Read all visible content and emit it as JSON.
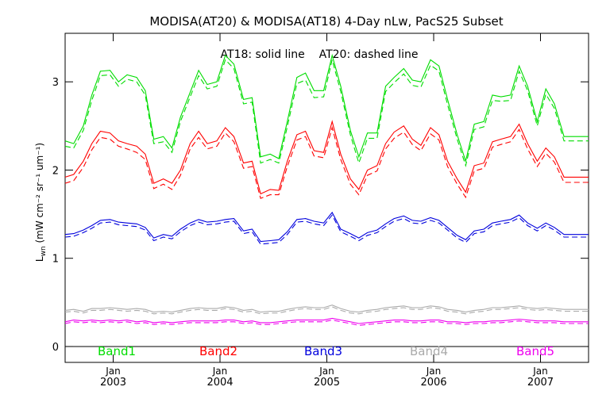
{
  "chart_data": {
    "type": "line",
    "title": "MODISA(AT20) & MODISA(AT18) 4-Day nLw, PacS25 Subset",
    "annotation": "AT18: solid line    AT20: dashed line",
    "ylabel_main": "L",
    "ylabel_sub": "wn",
    "ylabel_units": " (mW cm⁻² sr⁻¹ um⁻¹)",
    "xlabel": "",
    "ylim": [
      -0.18,
      3.55
    ],
    "xlim": [
      2002.55,
      2007.45
    ],
    "yticks": [
      0,
      1,
      2,
      3
    ],
    "ytick_labels": [
      "0",
      "1",
      "2",
      "3"
    ],
    "xticks": [
      2003,
      2004,
      2005,
      2006,
      2007
    ],
    "xtick_month_labels": [
      "Jan",
      "Jan",
      "Jan",
      "Jan",
      "Jan"
    ],
    "xtick_year_labels": [
      "2003",
      "2004",
      "2005",
      "2006",
      "2007"
    ],
    "grid": false,
    "x": [
      2002.55,
      2002.63,
      2002.72,
      2002.8,
      2002.88,
      2002.97,
      2003.05,
      2003.13,
      2003.22,
      2003.3,
      2003.38,
      2003.47,
      2003.55,
      2003.63,
      2003.72,
      2003.8,
      2003.88,
      2003.97,
      2004.05,
      2004.13,
      2004.22,
      2004.3,
      2004.38,
      2004.47,
      2004.55,
      2004.63,
      2004.72,
      2004.8,
      2004.88,
      2004.97,
      2005.05,
      2005.13,
      2005.22,
      2005.3,
      2005.38,
      2005.47,
      2005.55,
      2005.63,
      2005.72,
      2005.8,
      2005.88,
      2005.97,
      2006.05,
      2006.13,
      2006.22,
      2006.3,
      2006.38,
      2006.47,
      2006.55,
      2006.63,
      2006.72,
      2006.8,
      2006.88,
      2006.97,
      2007.05,
      2007.13,
      2007.22,
      2007.3,
      2007.38,
      2007.45
    ],
    "series": [
      {
        "name": "Band1",
        "color": "#00dd00",
        "style": "solid",
        "values": [
          2.33,
          2.3,
          2.5,
          2.85,
          3.12,
          3.13,
          3.0,
          3.08,
          3.05,
          2.9,
          2.35,
          2.38,
          2.25,
          2.6,
          2.88,
          3.13,
          2.97,
          3.0,
          3.3,
          3.2,
          2.8,
          2.82,
          2.15,
          2.18,
          2.13,
          2.55,
          3.05,
          3.1,
          2.9,
          2.9,
          3.3,
          2.95,
          2.45,
          2.15,
          2.42,
          2.42,
          2.95,
          3.05,
          3.15,
          3.02,
          3.0,
          3.25,
          3.18,
          2.8,
          2.4,
          2.1,
          2.52,
          2.55,
          2.85,
          2.83,
          2.85,
          3.18,
          2.95,
          2.55,
          2.92,
          2.75,
          2.38,
          2.38,
          2.38,
          2.38
        ]
      },
      {
        "name": "Band1",
        "color": "#00dd00",
        "style": "dashed",
        "values": [
          2.27,
          2.25,
          2.45,
          2.79,
          3.07,
          3.08,
          2.95,
          3.03,
          3.0,
          2.85,
          2.3,
          2.32,
          2.2,
          2.55,
          2.83,
          3.07,
          2.92,
          2.95,
          3.25,
          3.15,
          2.75,
          2.77,
          2.08,
          2.12,
          2.08,
          2.49,
          2.98,
          3.02,
          2.82,
          2.83,
          3.25,
          2.89,
          2.4,
          2.08,
          2.36,
          2.36,
          2.89,
          2.99,
          3.09,
          2.96,
          2.94,
          3.19,
          3.12,
          2.74,
          2.35,
          2.05,
          2.46,
          2.49,
          2.79,
          2.78,
          2.79,
          3.12,
          2.9,
          2.5,
          2.86,
          2.7,
          2.33,
          2.33,
          2.33,
          2.33
        ]
      },
      {
        "name": "Band2",
        "color": "#ff0000",
        "style": "solid",
        "values": [
          1.92,
          1.95,
          2.1,
          2.3,
          2.44,
          2.42,
          2.33,
          2.3,
          2.27,
          2.18,
          1.85,
          1.9,
          1.85,
          2.0,
          2.3,
          2.44,
          2.3,
          2.33,
          2.48,
          2.38,
          2.08,
          2.1,
          1.73,
          1.78,
          1.77,
          2.1,
          2.4,
          2.44,
          2.22,
          2.2,
          2.55,
          2.18,
          1.9,
          1.78,
          2.0,
          2.05,
          2.3,
          2.43,
          2.5,
          2.35,
          2.28,
          2.48,
          2.4,
          2.1,
          1.9,
          1.75,
          2.05,
          2.08,
          2.32,
          2.35,
          2.38,
          2.52,
          2.3,
          2.1,
          2.25,
          2.15,
          1.92,
          1.92,
          1.92,
          1.92
        ]
      },
      {
        "name": "Band2",
        "color": "#ff0000",
        "style": "dashed",
        "values": [
          1.85,
          1.88,
          2.03,
          2.23,
          2.37,
          2.35,
          2.27,
          2.24,
          2.2,
          2.12,
          1.79,
          1.84,
          1.78,
          1.94,
          2.24,
          2.37,
          2.24,
          2.27,
          2.42,
          2.32,
          2.02,
          2.04,
          1.68,
          1.72,
          1.72,
          2.04,
          2.34,
          2.38,
          2.16,
          2.14,
          2.48,
          2.12,
          1.84,
          1.72,
          1.94,
          1.99,
          2.24,
          2.36,
          2.43,
          2.29,
          2.22,
          2.41,
          2.34,
          2.04,
          1.84,
          1.69,
          1.99,
          2.02,
          2.26,
          2.29,
          2.32,
          2.46,
          2.24,
          2.04,
          2.19,
          2.09,
          1.86,
          1.86,
          1.86,
          1.86
        ]
      },
      {
        "name": "Band3",
        "color": "#0000dd",
        "style": "solid",
        "values": [
          1.27,
          1.28,
          1.32,
          1.37,
          1.43,
          1.44,
          1.41,
          1.4,
          1.39,
          1.35,
          1.23,
          1.27,
          1.25,
          1.33,
          1.4,
          1.44,
          1.41,
          1.42,
          1.44,
          1.45,
          1.31,
          1.33,
          1.19,
          1.2,
          1.21,
          1.3,
          1.44,
          1.45,
          1.42,
          1.4,
          1.52,
          1.33,
          1.28,
          1.23,
          1.29,
          1.32,
          1.39,
          1.45,
          1.48,
          1.43,
          1.42,
          1.46,
          1.43,
          1.35,
          1.26,
          1.21,
          1.31,
          1.33,
          1.4,
          1.42,
          1.44,
          1.49,
          1.4,
          1.34,
          1.4,
          1.35,
          1.27,
          1.27,
          1.27,
          1.27
        ]
      },
      {
        "name": "Band3",
        "color": "#0000dd",
        "style": "dashed",
        "values": [
          1.24,
          1.25,
          1.29,
          1.34,
          1.4,
          1.41,
          1.38,
          1.37,
          1.36,
          1.32,
          1.2,
          1.24,
          1.22,
          1.3,
          1.37,
          1.41,
          1.38,
          1.39,
          1.41,
          1.42,
          1.28,
          1.3,
          1.16,
          1.17,
          1.18,
          1.27,
          1.41,
          1.42,
          1.39,
          1.37,
          1.49,
          1.3,
          1.25,
          1.2,
          1.26,
          1.29,
          1.36,
          1.42,
          1.45,
          1.4,
          1.39,
          1.43,
          1.4,
          1.32,
          1.23,
          1.18,
          1.28,
          1.3,
          1.37,
          1.39,
          1.41,
          1.46,
          1.37,
          1.31,
          1.37,
          1.32,
          1.24,
          1.24,
          1.24,
          1.24
        ]
      },
      {
        "name": "Band4",
        "color": "#aaaaaa",
        "style": "solid",
        "values": [
          0.41,
          0.42,
          0.4,
          0.43,
          0.43,
          0.44,
          0.43,
          0.42,
          0.43,
          0.42,
          0.39,
          0.4,
          0.39,
          0.41,
          0.43,
          0.44,
          0.43,
          0.43,
          0.45,
          0.44,
          0.41,
          0.42,
          0.39,
          0.4,
          0.4,
          0.42,
          0.44,
          0.45,
          0.44,
          0.44,
          0.47,
          0.43,
          0.4,
          0.39,
          0.41,
          0.42,
          0.44,
          0.45,
          0.46,
          0.44,
          0.44,
          0.46,
          0.45,
          0.42,
          0.41,
          0.39,
          0.41,
          0.42,
          0.44,
          0.44,
          0.45,
          0.46,
          0.44,
          0.43,
          0.44,
          0.43,
          0.42,
          0.42,
          0.42,
          0.42
        ]
      },
      {
        "name": "Band4",
        "color": "#aaaaaa",
        "style": "dashed",
        "values": [
          0.39,
          0.4,
          0.38,
          0.41,
          0.41,
          0.42,
          0.41,
          0.4,
          0.41,
          0.4,
          0.37,
          0.38,
          0.37,
          0.39,
          0.41,
          0.42,
          0.41,
          0.41,
          0.43,
          0.42,
          0.39,
          0.4,
          0.37,
          0.38,
          0.38,
          0.4,
          0.42,
          0.43,
          0.42,
          0.42,
          0.45,
          0.41,
          0.38,
          0.37,
          0.39,
          0.4,
          0.42,
          0.43,
          0.44,
          0.42,
          0.42,
          0.44,
          0.43,
          0.4,
          0.39,
          0.37,
          0.39,
          0.4,
          0.42,
          0.42,
          0.43,
          0.44,
          0.42,
          0.41,
          0.42,
          0.41,
          0.4,
          0.4,
          0.4,
          0.4
        ]
      },
      {
        "name": "Band5",
        "color": "#ee00ee",
        "style": "solid",
        "values": [
          0.28,
          0.3,
          0.29,
          0.3,
          0.29,
          0.3,
          0.29,
          0.3,
          0.28,
          0.29,
          0.27,
          0.28,
          0.27,
          0.28,
          0.29,
          0.29,
          0.29,
          0.29,
          0.3,
          0.3,
          0.28,
          0.29,
          0.27,
          0.27,
          0.28,
          0.29,
          0.3,
          0.3,
          0.3,
          0.3,
          0.32,
          0.3,
          0.28,
          0.26,
          0.27,
          0.28,
          0.29,
          0.3,
          0.3,
          0.29,
          0.29,
          0.3,
          0.3,
          0.28,
          0.28,
          0.27,
          0.28,
          0.28,
          0.29,
          0.29,
          0.3,
          0.31,
          0.3,
          0.29,
          0.29,
          0.29,
          0.28,
          0.28,
          0.28,
          0.28
        ]
      },
      {
        "name": "Band5",
        "color": "#ee00ee",
        "style": "dashed",
        "values": [
          0.26,
          0.28,
          0.27,
          0.28,
          0.27,
          0.28,
          0.27,
          0.28,
          0.26,
          0.27,
          0.25,
          0.26,
          0.25,
          0.26,
          0.27,
          0.27,
          0.27,
          0.27,
          0.28,
          0.28,
          0.26,
          0.27,
          0.25,
          0.25,
          0.26,
          0.27,
          0.28,
          0.28,
          0.28,
          0.28,
          0.3,
          0.28,
          0.26,
          0.24,
          0.25,
          0.26,
          0.27,
          0.28,
          0.28,
          0.27,
          0.27,
          0.28,
          0.28,
          0.26,
          0.26,
          0.25,
          0.26,
          0.26,
          0.27,
          0.27,
          0.28,
          0.29,
          0.28,
          0.27,
          0.27,
          0.27,
          0.26,
          0.26,
          0.26,
          0.26
        ]
      }
    ],
    "legend": [
      {
        "label": "Band1",
        "color": "#00dd00"
      },
      {
        "label": "Band2",
        "color": "#ff0000"
      },
      {
        "label": "Band3",
        "color": "#0000dd"
      },
      {
        "label": "Band4",
        "color": "#aaaaaa"
      },
      {
        "label": "Band5",
        "color": "#ee00ee"
      }
    ],
    "legend_placement": "bottom inside plot"
  }
}
